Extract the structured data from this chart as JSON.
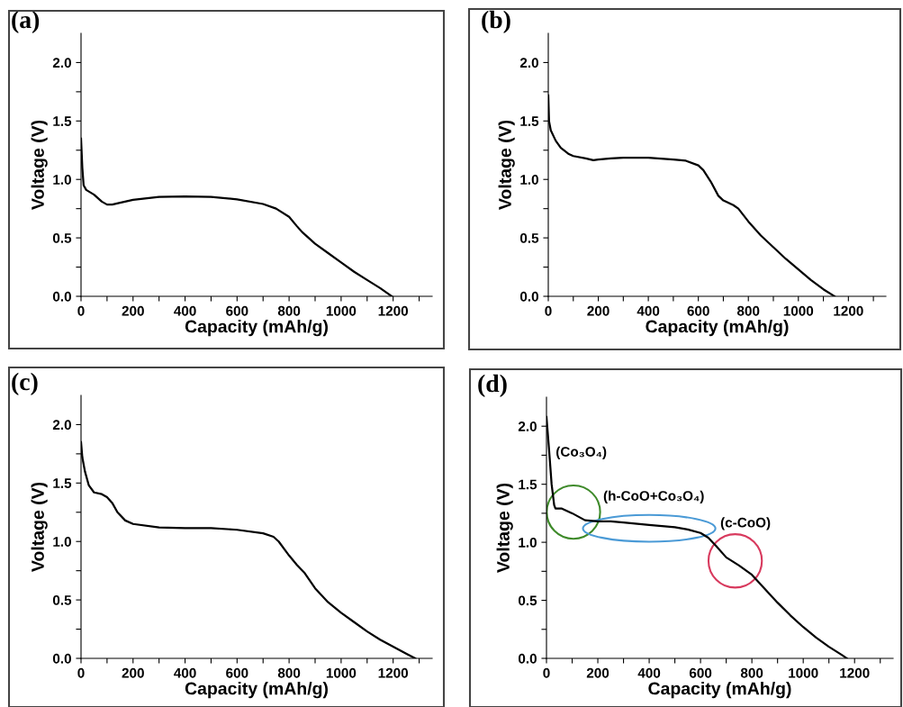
{
  "chart_data": [
    {
      "type": "line",
      "title": "(a)",
      "xlabel": "Capacity (mAh/g)",
      "ylabel": "Voltage (V)",
      "xlim": [
        0,
        1350
      ],
      "ylim": [
        0,
        2.25
      ],
      "xticks": [
        {
          "value": 0,
          "label": "0"
        },
        {
          "value": 100,
          "label": null
        },
        {
          "value": 200,
          "label": "200"
        },
        {
          "value": 300,
          "label": null
        },
        {
          "value": 400,
          "label": "400"
        },
        {
          "value": 500,
          "label": null
        },
        {
          "value": 600,
          "label": "600"
        },
        {
          "value": 700,
          "label": null
        },
        {
          "value": 800,
          "label": "800"
        },
        {
          "value": 900,
          "label": null
        },
        {
          "value": 1000,
          "label": "1000"
        },
        {
          "value": 1100,
          "label": null
        },
        {
          "value": 1200,
          "label": "1200"
        },
        {
          "value": 1300,
          "label": null
        }
      ],
      "yticks": [
        {
          "value": 0,
          "label": "0.0"
        },
        {
          "value": 0.25,
          "label": null
        },
        {
          "value": 0.5,
          "label": "0.5"
        },
        {
          "value": 0.75,
          "label": null
        },
        {
          "value": 1,
          "label": "1.0"
        },
        {
          "value": 1.25,
          "label": null
        },
        {
          "value": 1.5,
          "label": "1.5"
        },
        {
          "value": 1.75,
          "label": null
        },
        {
          "value": 2,
          "label": "2.0"
        }
      ],
      "grid": false,
      "legend": false,
      "marker": "none",
      "line_style": "solid",
      "series": [
        {
          "color": "#000000",
          "x": [
            0,
            5,
            10,
            20,
            50,
            80,
            100,
            120,
            150,
            200,
            300,
            400,
            500,
            600,
            700,
            750,
            800,
            830,
            850,
            900,
            950,
            1000,
            1050,
            1100,
            1150,
            1195
          ],
          "values": [
            1.35,
            1.1,
            0.95,
            0.91,
            0.87,
            0.81,
            0.785,
            0.785,
            0.8,
            0.825,
            0.85,
            0.855,
            0.85,
            0.83,
            0.79,
            0.75,
            0.68,
            0.6,
            0.55,
            0.45,
            0.37,
            0.29,
            0.21,
            0.14,
            0.07,
            0.0
          ]
        }
      ]
    },
    {
      "type": "line",
      "title": "(b)",
      "xlabel": "Capacity (mAh/g)",
      "ylabel": "Voltage (V)",
      "xlim": [
        0,
        1350
      ],
      "ylim": [
        0,
        2.25
      ],
      "xticks": [
        {
          "value": 0,
          "label": "0"
        },
        {
          "value": 100,
          "label": null
        },
        {
          "value": 200,
          "label": "200"
        },
        {
          "value": 300,
          "label": null
        },
        {
          "value": 400,
          "label": "400"
        },
        {
          "value": 500,
          "label": null
        },
        {
          "value": 600,
          "label": "600"
        },
        {
          "value": 700,
          "label": null
        },
        {
          "value": 800,
          "label": "800"
        },
        {
          "value": 900,
          "label": null
        },
        {
          "value": 1000,
          "label": "1000"
        },
        {
          "value": 1100,
          "label": null
        },
        {
          "value": 1200,
          "label": "1200"
        },
        {
          "value": 1300,
          "label": null
        }
      ],
      "yticks": [
        {
          "value": 0,
          "label": "0.0"
        },
        {
          "value": 0.25,
          "label": null
        },
        {
          "value": 0.5,
          "label": "0.5"
        },
        {
          "value": 0.75,
          "label": null
        },
        {
          "value": 1,
          "label": "1.0"
        },
        {
          "value": 1.25,
          "label": null
        },
        {
          "value": 1.5,
          "label": "1.5"
        },
        {
          "value": 1.75,
          "label": null
        },
        {
          "value": 2,
          "label": "2.0"
        }
      ],
      "grid": false,
      "legend": false,
      "marker": "none",
      "line_style": "solid",
      "series": [
        {
          "color": "#000000",
          "x": [
            0,
            3,
            10,
            30,
            50,
            80,
            100,
            150,
            180,
            200,
            250,
            300,
            400,
            500,
            550,
            600,
            620,
            650,
            680,
            700,
            740,
            760,
            800,
            850,
            900,
            950,
            1000,
            1050,
            1100,
            1145
          ],
          "values": [
            1.72,
            1.5,
            1.42,
            1.33,
            1.27,
            1.22,
            1.2,
            1.18,
            1.165,
            1.17,
            1.18,
            1.185,
            1.185,
            1.17,
            1.16,
            1.12,
            1.08,
            0.98,
            0.86,
            0.82,
            0.78,
            0.75,
            0.64,
            0.52,
            0.42,
            0.32,
            0.23,
            0.14,
            0.06,
            0.0
          ]
        }
      ]
    },
    {
      "type": "line",
      "title": "(c)",
      "xlabel": "Capacity (mAh/g)",
      "ylabel": "Voltage (V)",
      "xlim": [
        0,
        1350
      ],
      "ylim": [
        0,
        2.25
      ],
      "xticks": [
        {
          "value": 0,
          "label": "0"
        },
        {
          "value": 100,
          "label": null
        },
        {
          "value": 200,
          "label": "200"
        },
        {
          "value": 300,
          "label": null
        },
        {
          "value": 400,
          "label": "400"
        },
        {
          "value": 500,
          "label": null
        },
        {
          "value": 600,
          "label": "600"
        },
        {
          "value": 700,
          "label": null
        },
        {
          "value": 800,
          "label": "800"
        },
        {
          "value": 900,
          "label": null
        },
        {
          "value": 1000,
          "label": "1000"
        },
        {
          "value": 1100,
          "label": null
        },
        {
          "value": 1200,
          "label": "1200"
        },
        {
          "value": 1300,
          "label": null
        }
      ],
      "yticks": [
        {
          "value": 0,
          "label": "0.0"
        },
        {
          "value": 0.25,
          "label": null
        },
        {
          "value": 0.5,
          "label": "0.5"
        },
        {
          "value": 0.75,
          "label": null
        },
        {
          "value": 1,
          "label": "1.0"
        },
        {
          "value": 1.25,
          "label": null
        },
        {
          "value": 1.5,
          "label": "1.5"
        },
        {
          "value": 1.75,
          "label": null
        },
        {
          "value": 2,
          "label": "2.0"
        }
      ],
      "grid": false,
      "legend": false,
      "marker": "none",
      "line_style": "solid",
      "series": [
        {
          "color": "#000000",
          "x": [
            0,
            5,
            15,
            30,
            50,
            80,
            100,
            120,
            140,
            170,
            200,
            300,
            400,
            500,
            600,
            700,
            740,
            760,
            800,
            830,
            860,
            900,
            950,
            1000,
            1050,
            1100,
            1150,
            1200,
            1250,
            1285
          ],
          "values": [
            1.85,
            1.72,
            1.6,
            1.48,
            1.42,
            1.405,
            1.38,
            1.33,
            1.25,
            1.18,
            1.15,
            1.12,
            1.115,
            1.115,
            1.1,
            1.07,
            1.04,
            1.0,
            0.88,
            0.8,
            0.73,
            0.6,
            0.48,
            0.39,
            0.31,
            0.23,
            0.16,
            0.1,
            0.04,
            0.0
          ]
        }
      ]
    },
    {
      "type": "line",
      "title": "(d)",
      "xlabel": "Capacity (mAh/g)",
      "ylabel": "Voltage (V)",
      "xlim": [
        0,
        1350
      ],
      "ylim": [
        0,
        2.25
      ],
      "xticks": [
        {
          "value": 0,
          "label": "0"
        },
        {
          "value": 100,
          "label": null
        },
        {
          "value": 200,
          "label": "200"
        },
        {
          "value": 300,
          "label": null
        },
        {
          "value": 400,
          "label": "400"
        },
        {
          "value": 500,
          "label": null
        },
        {
          "value": 600,
          "label": "600"
        },
        {
          "value": 700,
          "label": null
        },
        {
          "value": 800,
          "label": "800"
        },
        {
          "value": 900,
          "label": null
        },
        {
          "value": 1000,
          "label": "1000"
        },
        {
          "value": 1100,
          "label": null
        },
        {
          "value": 1200,
          "label": "1200"
        },
        {
          "value": 1300,
          "label": null
        }
      ],
      "yticks": [
        {
          "value": 0,
          "label": "0.0"
        },
        {
          "value": 0.25,
          "label": null
        },
        {
          "value": 0.5,
          "label": "0.5"
        },
        {
          "value": 0.75,
          "label": null
        },
        {
          "value": 1,
          "label": "1.0"
        },
        {
          "value": 1.25,
          "label": null
        },
        {
          "value": 1.5,
          "label": "1.5"
        },
        {
          "value": 1.75,
          "label": null
        },
        {
          "value": 2,
          "label": "2.0"
        }
      ],
      "grid": false,
      "legend": false,
      "marker": "none",
      "line_style": "solid",
      "series": [
        {
          "color": "#000000",
          "x": [
            0,
            10,
            20,
            30,
            35,
            60,
            100,
            150,
            200,
            250,
            300,
            400,
            500,
            550,
            600,
            630,
            660,
            700,
            750,
            800,
            850,
            900,
            950,
            1000,
            1050,
            1100,
            1150,
            1170
          ],
          "values": [
            2.08,
            1.8,
            1.5,
            1.32,
            1.29,
            1.29,
            1.25,
            1.19,
            1.18,
            1.18,
            1.17,
            1.15,
            1.13,
            1.11,
            1.08,
            1.04,
            0.97,
            0.87,
            0.8,
            0.72,
            0.6,
            0.48,
            0.37,
            0.27,
            0.18,
            0.1,
            0.03,
            0.0
          ]
        }
      ],
      "annotations": [
        {
          "text": "(Co₃O₄)",
          "x": 20,
          "y": 1.5
        },
        {
          "text": "(h-CoO+Co₃O₄)",
          "x": 400,
          "y": 1.15
        },
        {
          "text": "(c-CoO)",
          "x": 735,
          "y": 0.8
        }
      ]
    }
  ]
}
